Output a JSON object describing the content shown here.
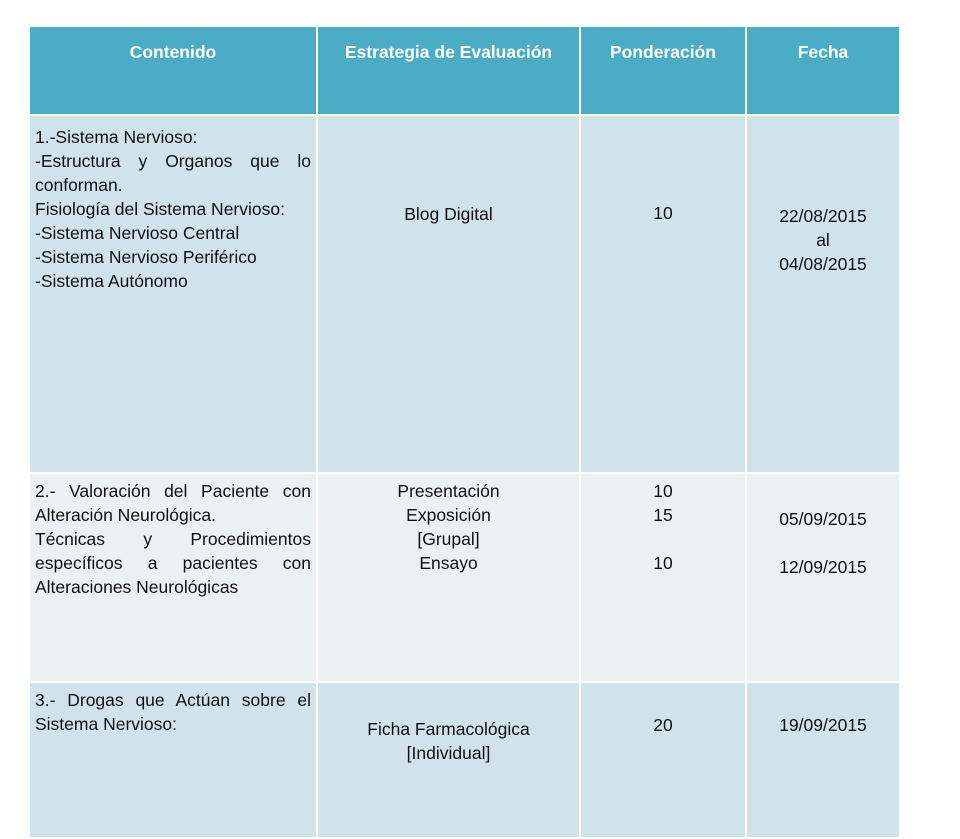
{
  "table": {
    "headers": [
      "Contenido",
      "Estrategia de Evaluación",
      "Ponderación",
      "Fecha"
    ],
    "rows": [
      {
        "contenido": [
          "1.-Sistema Nervioso:",
          "-Estructura y Organos que lo conforman.",
          "Fisiología del Sistema Nervioso:",
          "-Sistema Nervioso Central",
          "-Sistema Nervioso Periférico",
          "-Sistema Autónomo"
        ],
        "estrategia": [
          "Blog Digital"
        ],
        "ponderacion": [
          "10"
        ],
        "fecha": [
          "22/08/2015",
          "al",
          "04/08/2015"
        ]
      },
      {
        "contenido": [
          "2.- Valoración del Paciente con Alteración Neurológica.",
          "Técnicas y Procedimientos específicos a pacientes con Alteraciones Neurológicas"
        ],
        "estrategia": [
          "Presentación",
          "Exposición",
          "[Grupal]",
          "Ensayo"
        ],
        "ponderacion": [
          "10",
          "15",
          "",
          "10"
        ],
        "fecha": [
          "05/09/2015",
          "",
          "12/09/2015"
        ]
      },
      {
        "contenido": [
          "3.- Drogas que Actúan sobre el Sistema Nervioso:"
        ],
        "estrategia": [
          "Ficha Farmacológica",
          "[Individual]"
        ],
        "ponderacion": [
          "20"
        ],
        "fecha": [
          "19/09/2015"
        ]
      }
    ]
  },
  "colors": {
    "header_bg": "#4bacc6",
    "row_dark": "#d0e3ea",
    "row_light": "#e9f1f5",
    "header_text": "#ffffff"
  }
}
